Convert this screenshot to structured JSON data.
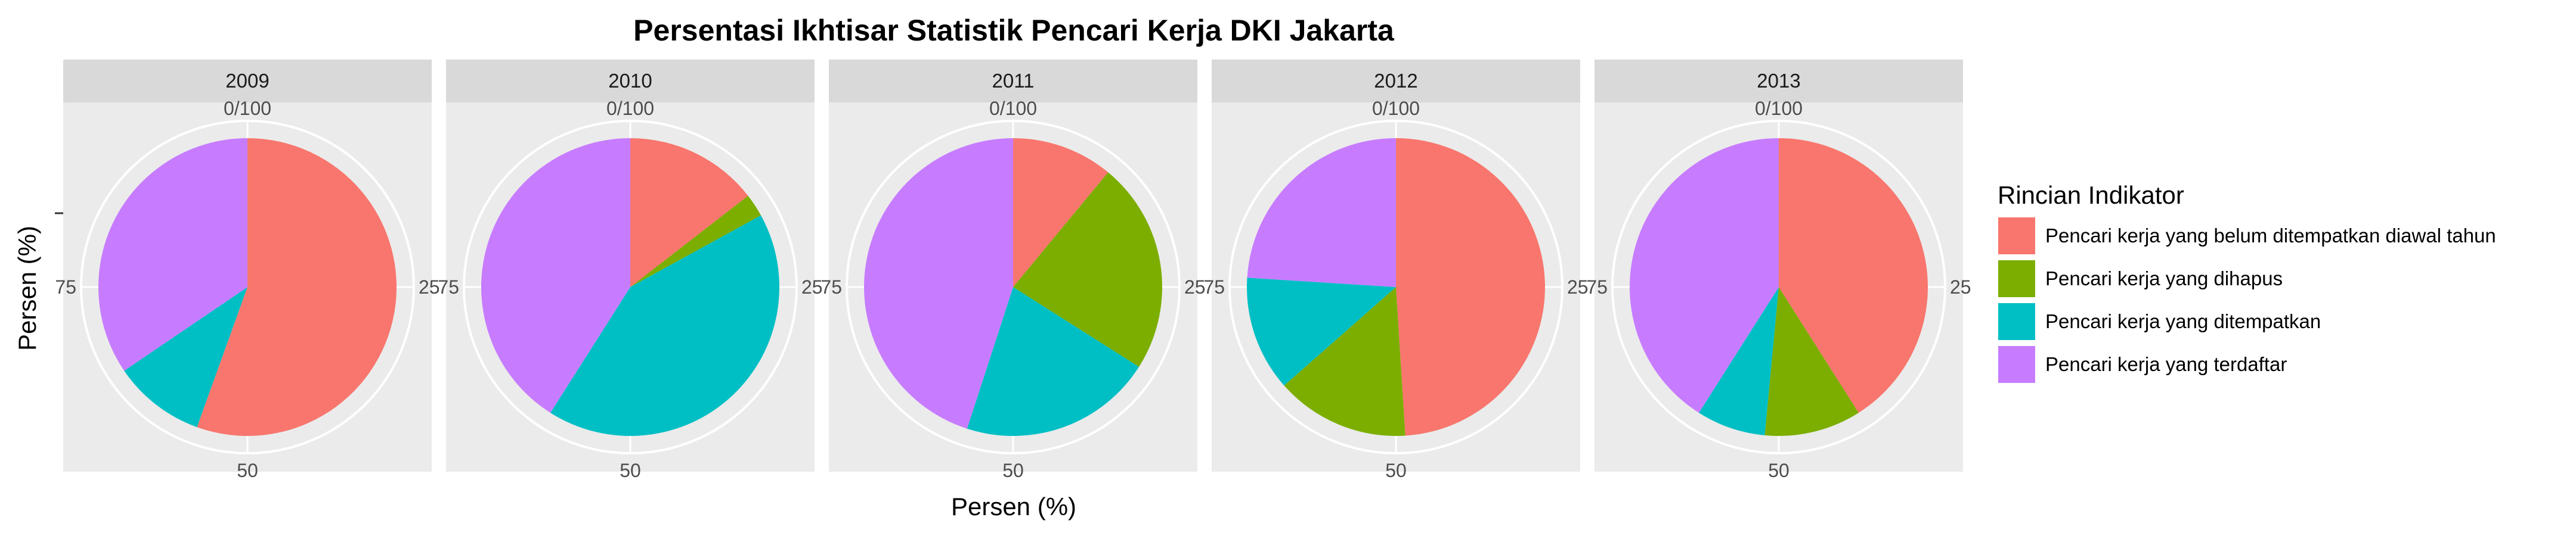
{
  "chart_data": {
    "type": "pie",
    "title": "Persentasi Ikhtisar Statistik Pencari Kerja DKI Jakarta",
    "xlabel": "Persen (%)",
    "ylabel": "Persen (%)",
    "theta_ticks": [
      "0/100",
      "25",
      "50",
      "75"
    ],
    "legend": {
      "title": "Rincian Indikator",
      "placement": "right",
      "entries": [
        {
          "name": "Pencari kerja yang belum ditempatkan diawal tahun",
          "color": "#F8766D"
        },
        {
          "name": "Pencari kerja yang dihapus",
          "color": "#7CAE00"
        },
        {
          "name": "Pencari kerja yang ditempatkan",
          "color": "#00BFC4"
        },
        {
          "name": "Pencari kerja yang terdaftar",
          "color": "#C77CFF"
        }
      ]
    },
    "categories": [
      "Pencari kerja yang belum ditempatkan diawal tahun",
      "Pencari kerja yang dihapus",
      "Pencari kerja yang ditempatkan",
      "Pencari kerja yang terdaftar"
    ],
    "facets": [
      {
        "label": "2009",
        "values": [
          55.5,
          0.0,
          10.0,
          34.5
        ]
      },
      {
        "label": "2010",
        "values": [
          14.5,
          2.5,
          42.0,
          41.0
        ]
      },
      {
        "label": "2011",
        "values": [
          11.0,
          23.0,
          21.0,
          45.0
        ]
      },
      {
        "label": "2012",
        "values": [
          49.0,
          14.5,
          12.5,
          24.0
        ]
      },
      {
        "label": "2013",
        "values": [
          41.0,
          10.5,
          7.5,
          41.0
        ]
      }
    ]
  }
}
